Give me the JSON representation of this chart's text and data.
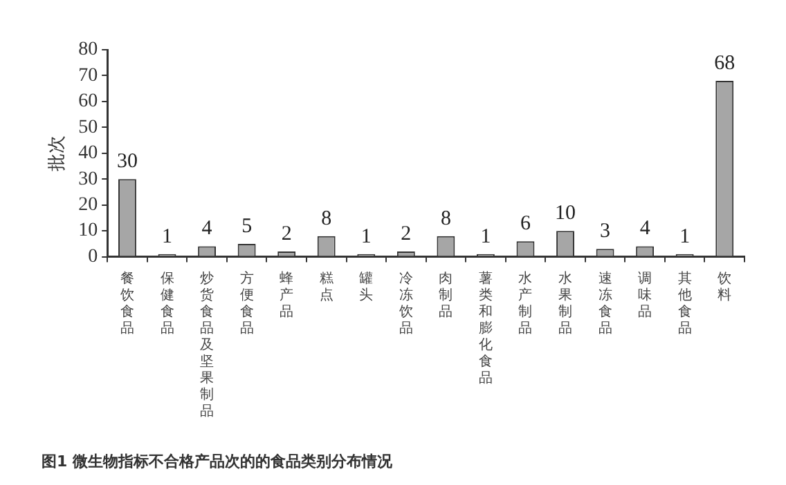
{
  "chart_data": {
    "type": "bar",
    "title": "图1 微生物指标不合格产品次的的食品类别分布情况",
    "ylabel": "批次",
    "categories": [
      "餐饮食品",
      "保健食品",
      "炒货食品及坚果制品",
      "方便食品",
      "蜂产品",
      "糕点",
      "罐头",
      "冷冻饮品",
      "肉制品",
      "薯类和膨化食品",
      "水产制品",
      "水果制品",
      "速冻食品",
      "调味品",
      "其他食品",
      "饮料"
    ],
    "values": [
      30,
      1,
      4,
      5,
      2,
      8,
      1,
      2,
      8,
      1,
      6,
      10,
      3,
      4,
      1,
      68
    ],
    "color": "#a6a6a6",
    "ylim": [
      0,
      80
    ],
    "yticks": [
      0,
      10,
      20,
      30,
      40,
      50,
      60,
      70,
      80
    ],
    "grid": false,
    "legend": false,
    "data_labels": true
  }
}
